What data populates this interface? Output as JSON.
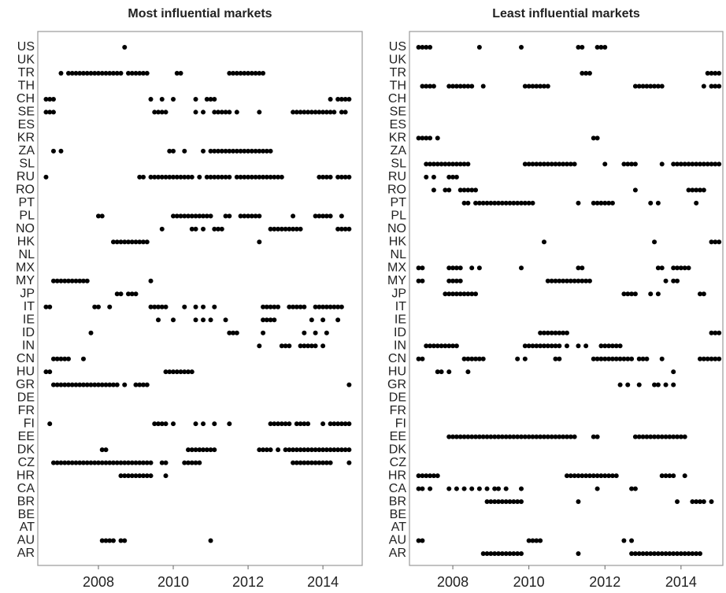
{
  "chart_data": [
    {
      "type": "scatter",
      "title": "Most influential markets",
      "color": "#000000",
      "xlim": [
        2006.38,
        2015.05
      ],
      "xticks": [
        2008,
        2010,
        2012,
        2014
      ],
      "categories": [
        "US",
        "UK",
        "TR",
        "TH",
        "CH",
        "SE",
        "ES",
        "KR",
        "ZA",
        "SL",
        "RU",
        "RO",
        "PT",
        "PL",
        "NO",
        "HK",
        "NL",
        "MX",
        "MY",
        "JP",
        "IT",
        "IE",
        "ID",
        "IN",
        "CN",
        "HU",
        "GR",
        "DE",
        "FR",
        "FI",
        "EE",
        "DK",
        "CZ",
        "HR",
        "CA",
        "BR",
        "BE",
        "AT",
        "AU",
        "AR"
      ],
      "values": [
        [
          2008.7
        ],
        [],
        [
          2007,
          2007.2,
          2007.3,
          2007.4,
          2007.5,
          2007.6,
          2007.7,
          2007.8,
          2007.9,
          2008,
          2008.1,
          2008.2,
          2008.3,
          2008.4,
          2008.5,
          2008.6,
          2008.8,
          2008.9,
          2009,
          2009.1,
          2009.2,
          2009.3,
          2010.1,
          2010.2,
          2011.5,
          2011.6,
          2011.7,
          2011.8,
          2011.9,
          2012,
          2012.1,
          2012.2,
          2012.3,
          2012.4
        ],
        [],
        [
          2006.6,
          2006.7,
          2006.8,
          2009.4,
          2009.7,
          2010,
          2010.6,
          2010.9,
          2011,
          2011.1,
          2014.2,
          2014.4,
          2014.5,
          2014.6,
          2014.7
        ],
        [
          2006.6,
          2006.7,
          2006.8,
          2009.5,
          2009.6,
          2009.7,
          2009.8,
          2010.6,
          2010.8,
          2011.1,
          2011.2,
          2011.3,
          2011.4,
          2011.5,
          2011.7,
          2012.3,
          2013.2,
          2013.3,
          2013.4,
          2013.5,
          2013.6,
          2013.7,
          2013.8,
          2013.9,
          2014,
          2014.1,
          2014.2,
          2014.3,
          2014.5,
          2014.6
        ],
        [],
        [],
        [
          2006.8,
          2007,
          2009.9,
          2010,
          2010.3,
          2010.8,
          2011,
          2011.1,
          2011.2,
          2011.3,
          2011.4,
          2011.5,
          2011.6,
          2011.7,
          2011.8,
          2011.9,
          2012,
          2012.1,
          2012.2,
          2012.3,
          2012.4,
          2012.5,
          2012.6
        ],
        [],
        [
          2006.6,
          2009.1,
          2009.2,
          2009.4,
          2009.5,
          2009.6,
          2009.7,
          2009.8,
          2009.9,
          2010,
          2010.1,
          2010.2,
          2010.3,
          2010.4,
          2010.5,
          2010.7,
          2010.9,
          2011,
          2011.1,
          2011.2,
          2011.3,
          2011.4,
          2011.5,
          2011.7,
          2011.8,
          2011.9,
          2012,
          2012.1,
          2012.2,
          2012.3,
          2012.4,
          2012.5,
          2012.6,
          2012.7,
          2012.8,
          2012.9,
          2013.9,
          2014,
          2014.1,
          2014.2,
          2014.4,
          2014.5,
          2014.6,
          2014.7
        ],
        [],
        [],
        [
          2008,
          2008.1,
          2010,
          2010.1,
          2010.2,
          2010.3,
          2010.4,
          2010.5,
          2010.6,
          2010.7,
          2010.8,
          2010.9,
          2011,
          2011.4,
          2011.5,
          2011.8,
          2011.9,
          2012,
          2012.1,
          2012.2,
          2012.3,
          2013.2,
          2013.8,
          2013.9,
          2014,
          2014.1,
          2014.2,
          2014.5
        ],
        [
          2009.7,
          2010.5,
          2010.6,
          2010.8,
          2011.1,
          2011.2,
          2011.3,
          2012.6,
          2012.7,
          2012.8,
          2012.9,
          2013,
          2013.1,
          2013.2,
          2013.3,
          2013.4,
          2014.4,
          2014.5,
          2014.6,
          2014.7
        ],
        [
          2008.4,
          2008.5,
          2008.6,
          2008.7,
          2008.8,
          2008.9,
          2009,
          2009.1,
          2009.2,
          2009.3,
          2012.3
        ],
        [],
        [],
        [
          2006.8,
          2006.9,
          2007,
          2007.1,
          2007.2,
          2007.3,
          2007.4,
          2007.5,
          2007.6,
          2007.7,
          2009.4
        ],
        [
          2008.5,
          2008.6,
          2008.8,
          2008.9,
          2009
        ],
        [
          2006.6,
          2006.7,
          2007.9,
          2008,
          2008.3,
          2009.4,
          2009.5,
          2009.6,
          2009.7,
          2009.8,
          2010.3,
          2010.6,
          2010.8,
          2011.1,
          2012.4,
          2012.5,
          2012.6,
          2012.7,
          2012.8,
          2013.1,
          2013.2,
          2013.3,
          2013.4,
          2013.5,
          2013.8,
          2013.9,
          2014,
          2014.1,
          2014.2,
          2014.3,
          2014.4,
          2014.5
        ],
        [
          2009.6,
          2010,
          2010.6,
          2010.8,
          2011,
          2011.4,
          2012.4,
          2012.5,
          2012.6,
          2012.7,
          2013.7,
          2014,
          2014.4
        ],
        [
          2007.8,
          2011.5,
          2011.6,
          2011.7,
          2012.4,
          2013.5,
          2013.8,
          2014.1
        ],
        [
          2012.3,
          2012.9,
          2013,
          2013.1,
          2013.4,
          2013.5,
          2013.6,
          2013.7,
          2013.8,
          2014
        ],
        [
          2006.8,
          2006.9,
          2007,
          2007.1,
          2007.2,
          2007.6
        ],
        [
          2006.6,
          2006.7,
          2009.8,
          2009.9,
          2010,
          2010.1,
          2010.2,
          2010.3,
          2010.4,
          2010.5
        ],
        [
          2006.8,
          2006.9,
          2007,
          2007.1,
          2007.2,
          2007.3,
          2007.4,
          2007.5,
          2007.6,
          2007.7,
          2007.8,
          2007.9,
          2008,
          2008.1,
          2008.2,
          2008.3,
          2008.4,
          2008.5,
          2008.7,
          2009,
          2009.1,
          2009.2,
          2009.3,
          2014.7
        ],
        [],
        [],
        [
          2006.7,
          2009.5,
          2009.6,
          2009.7,
          2009.8,
          2010,
          2010.6,
          2010.8,
          2011.1,
          2011.5,
          2012.6,
          2012.7,
          2012.8,
          2012.9,
          2013,
          2013.1,
          2013.3,
          2013.4,
          2013.5,
          2013.6,
          2014,
          2014.2,
          2014.3,
          2014.4,
          2014.5,
          2014.6,
          2014.7
        ],
        [],
        [
          2008.1,
          2008.2,
          2010.4,
          2010.5,
          2010.6,
          2010.7,
          2010.8,
          2010.9,
          2011,
          2011.1,
          2012.3,
          2012.4,
          2012.5,
          2012.6,
          2012.8,
          2013,
          2013.1,
          2013.2,
          2013.3,
          2013.4,
          2013.5,
          2013.6,
          2013.7,
          2013.8,
          2013.9,
          2014,
          2014.1,
          2014.2,
          2014.3,
          2014.4,
          2014.5,
          2014.6,
          2014.7
        ],
        [
          2006.8,
          2006.9,
          2007,
          2007.1,
          2007.2,
          2007.3,
          2007.4,
          2007.5,
          2007.6,
          2007.7,
          2007.8,
          2007.9,
          2008,
          2008.1,
          2008.2,
          2008.3,
          2008.4,
          2008.5,
          2008.6,
          2008.7,
          2008.8,
          2008.9,
          2009,
          2009.1,
          2009.2,
          2009.3,
          2009.4,
          2009.7,
          2009.8,
          2010.3,
          2010.4,
          2010.5,
          2010.6,
          2010.7,
          2013.2,
          2013.3,
          2013.4,
          2013.5,
          2013.6,
          2013.7,
          2013.8,
          2013.9,
          2014,
          2014.1,
          2014.2,
          2014.7
        ],
        [
          2008.6,
          2008.7,
          2008.8,
          2008.9,
          2009,
          2009.1,
          2009.2,
          2009.3,
          2009.4,
          2009.8
        ],
        [],
        [],
        [],
        [],
        [
          2008.1,
          2008.2,
          2008.3,
          2008.4,
          2008.6,
          2008.7,
          2011
        ],
        []
      ]
    },
    {
      "type": "scatter",
      "title": "Least influential markets",
      "color": "#000000",
      "xlim": [
        2006.86,
        2015.1
      ],
      "xticks": [
        2008,
        2010,
        2012,
        2014
      ],
      "categories": [
        "US",
        "UK",
        "TR",
        "TH",
        "CH",
        "SE",
        "ES",
        "KR",
        "ZA",
        "SL",
        "RU",
        "RO",
        "PT",
        "PL",
        "NO",
        "HK",
        "NL",
        "MX",
        "MY",
        "JP",
        "IT",
        "IE",
        "ID",
        "IN",
        "CN",
        "HU",
        "GR",
        "DE",
        "FR",
        "FI",
        "EE",
        "DK",
        "CZ",
        "HR",
        "CA",
        "BR",
        "BE",
        "AT",
        "AU",
        "AR"
      ],
      "values": [
        [
          2007.1,
          2007.2,
          2007.3,
          2007.4,
          2008.7,
          2009.8,
          2011.3,
          2011.4,
          2011.8,
          2011.9,
          2012
        ],
        [],
        [
          2011.4,
          2011.5,
          2011.6,
          2014.7,
          2014.8,
          2014.9,
          2015
        ],
        [
          2007.2,
          2007.3,
          2007.4,
          2007.5,
          2007.9,
          2008,
          2008.1,
          2008.2,
          2008.3,
          2008.4,
          2008.5,
          2008.8,
          2009.9,
          2010,
          2010.1,
          2010.2,
          2010.3,
          2010.4,
          2010.5,
          2012.8,
          2012.9,
          2013,
          2013.1,
          2013.2,
          2013.3,
          2013.4,
          2013.5,
          2014.6,
          2014.8,
          2014.9,
          2015
        ],
        [],
        [],
        [],
        [
          2007.1,
          2007.2,
          2007.3,
          2007.4,
          2007.6,
          2011.7,
          2011.8
        ],
        [],
        [
          2007.3,
          2007.4,
          2007.5,
          2007.6,
          2007.7,
          2007.8,
          2007.9,
          2008,
          2008.1,
          2008.2,
          2008.3,
          2008.4,
          2009.9,
          2010,
          2010.1,
          2010.2,
          2010.3,
          2010.4,
          2010.5,
          2010.6,
          2010.7,
          2010.8,
          2010.9,
          2011,
          2011.1,
          2011.2,
          2012,
          2012.5,
          2012.6,
          2012.7,
          2012.8,
          2013.5,
          2013.8,
          2013.9,
          2014,
          2014.1,
          2014.2,
          2014.3,
          2014.4,
          2014.5,
          2014.6,
          2014.7,
          2014.8,
          2014.9,
          2015
        ],
        [
          2007.3,
          2007.5,
          2007.9,
          2008,
          2008.1
        ],
        [
          2007.5,
          2007.8,
          2007.9,
          2008.2,
          2008.3,
          2008.4,
          2008.5,
          2008.6,
          2012.8,
          2014.2,
          2014.3,
          2014.4,
          2014.5,
          2014.6
        ],
        [
          2008.3,
          2008.4,
          2008.6,
          2008.7,
          2008.8,
          2008.9,
          2009,
          2009.1,
          2009.2,
          2009.3,
          2009.4,
          2009.5,
          2009.6,
          2009.7,
          2009.8,
          2009.9,
          2010,
          2010.1,
          2011.3,
          2011.7,
          2011.8,
          2011.9,
          2012,
          2012.1,
          2012.2,
          2013.2,
          2013.4,
          2014.4
        ],
        [],
        [],
        [
          2010.4,
          2013.3,
          2014.8,
          2014.9,
          2015
        ],
        [],
        [
          2007.1,
          2007.2,
          2007.9,
          2008,
          2008.1,
          2008.2,
          2008.5,
          2008.7,
          2009.8,
          2011.3,
          2011.4,
          2013.4,
          2013.5,
          2013.8,
          2013.9,
          2014,
          2014.1,
          2014.2
        ],
        [
          2007.1,
          2007.2,
          2007.9,
          2008,
          2008.1,
          2008.2,
          2010.5,
          2010.6,
          2010.7,
          2010.8,
          2010.9,
          2011,
          2011.1,
          2011.2,
          2011.3,
          2011.4,
          2011.5,
          2011.6,
          2013.6,
          2013.8,
          2013.9
        ],
        [
          2007.8,
          2007.9,
          2008,
          2008.1,
          2008.2,
          2008.3,
          2008.4,
          2008.5,
          2008.6,
          2012.5,
          2012.6,
          2012.7,
          2012.8,
          2013.2,
          2013.4,
          2014.5,
          2014.6
        ],
        [],
        [],
        [
          2010.3,
          2010.4,
          2010.5,
          2010.6,
          2010.7,
          2010.8,
          2010.9,
          2011,
          2014.8,
          2014.9,
          2015
        ],
        [
          2007.3,
          2007.4,
          2007.5,
          2007.6,
          2007.7,
          2007.8,
          2007.9,
          2008,
          2008.1,
          2009.9,
          2010,
          2010.1,
          2010.2,
          2010.3,
          2010.4,
          2010.5,
          2010.6,
          2010.7,
          2010.8,
          2011,
          2011.3,
          2011.5,
          2011.9,
          2012,
          2012.1,
          2012.2,
          2012.3,
          2012.4
        ],
        [
          2007.1,
          2007.2,
          2008.3,
          2008.4,
          2008.5,
          2008.6,
          2008.7,
          2008.8,
          2009.7,
          2009.9,
          2010.7,
          2010.8,
          2011.7,
          2011.8,
          2011.9,
          2012,
          2012.1,
          2012.2,
          2012.3,
          2012.4,
          2012.5,
          2012.6,
          2012.7,
          2012.9,
          2013,
          2013.1,
          2013.5,
          2014.5,
          2014.6,
          2014.7,
          2014.8,
          2014.9,
          2015
        ],
        [
          2007.6,
          2007.7,
          2007.9,
          2008.4,
          2013.8
        ],
        [
          2012.4,
          2012.6,
          2012.9,
          2013.3,
          2013.4,
          2013.6,
          2013.8
        ],
        [],
        [],
        [],
        [
          2007.9,
          2008,
          2008.1,
          2008.2,
          2008.3,
          2008.4,
          2008.5,
          2008.6,
          2008.7,
          2008.8,
          2008.9,
          2009,
          2009.1,
          2009.2,
          2009.3,
          2009.4,
          2009.5,
          2009.6,
          2009.7,
          2009.8,
          2009.9,
          2010,
          2010.1,
          2010.2,
          2010.3,
          2010.4,
          2010.5,
          2010.6,
          2010.7,
          2010.8,
          2010.9,
          2011,
          2011.1,
          2011.2,
          2011.7,
          2011.8,
          2012.8,
          2012.9,
          2013,
          2013.1,
          2013.2,
          2013.3,
          2013.4,
          2013.5,
          2013.6,
          2013.7,
          2013.8,
          2013.9,
          2014,
          2014.1
        ],
        [],
        [],
        [
          2007.1,
          2007.2,
          2007.3,
          2007.4,
          2007.5,
          2007.6,
          2011,
          2011.1,
          2011.2,
          2011.3,
          2011.4,
          2011.5,
          2011.6,
          2011.7,
          2011.8,
          2011.9,
          2012,
          2012.1,
          2012.2,
          2012.3,
          2013.5,
          2013.6,
          2013.7,
          2013.8,
          2014.1
        ],
        [
          2007.1,
          2007.2,
          2007.4,
          2007.9,
          2008.1,
          2008.3,
          2008.5,
          2008.7,
          2008.9,
          2009.1,
          2009.2,
          2009.4,
          2009.8,
          2011.8,
          2012.7,
          2012.8
        ],
        [
          2008.9,
          2009,
          2009.1,
          2009.2,
          2009.3,
          2009.4,
          2009.5,
          2009.6,
          2009.7,
          2009.8,
          2011.3,
          2013.9,
          2014.3,
          2014.4,
          2014.5,
          2014.6,
          2014.8
        ],
        [],
        [],
        [
          2007.1,
          2007.2,
          2010,
          2010.1,
          2010.2,
          2010.3,
          2012.5,
          2012.7
        ],
        [
          2008.8,
          2008.9,
          2009,
          2009.1,
          2009.2,
          2009.3,
          2009.4,
          2009.5,
          2009.6,
          2009.7,
          2009.8,
          2011.3,
          2012.7,
          2012.8,
          2012.9,
          2013,
          2013.1,
          2013.2,
          2013.3,
          2013.4,
          2013.5,
          2013.6,
          2013.7,
          2013.8,
          2013.9,
          2014,
          2014.1,
          2014.2,
          2014.3,
          2014.4,
          2014.5
        ]
      ]
    }
  ]
}
